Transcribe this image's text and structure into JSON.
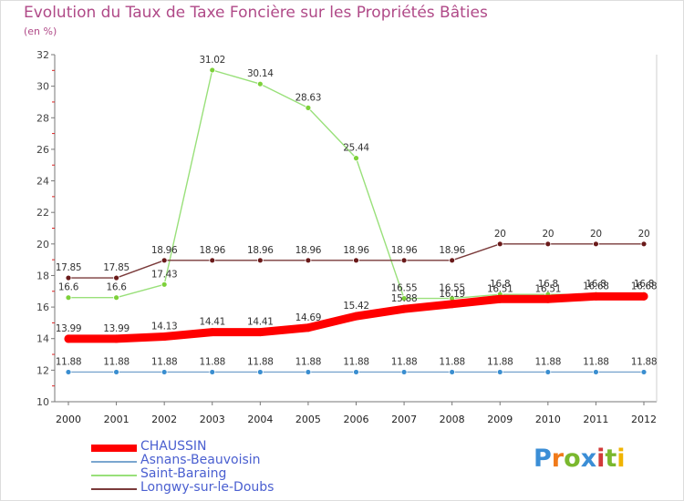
{
  "chart_data": {
    "type": "line",
    "title": "Evolution du Taux de Taxe Foncière sur les Propriétés Bâties",
    "ylabel": "(en %)",
    "xlabel": "",
    "ylim": [
      10,
      32
    ],
    "yticks": [
      10,
      12,
      14,
      16,
      18,
      20,
      22,
      24,
      26,
      28,
      30,
      32
    ],
    "categories": [
      "2000",
      "2001",
      "2002",
      "2003",
      "2004",
      "2005",
      "2006",
      "2007",
      "2008",
      "2009",
      "2010",
      "2011",
      "2012"
    ],
    "series": [
      {
        "name": "CHAUSSIN",
        "color": "#ff0000",
        "marker": "#ff0000",
        "values": [
          13.99,
          13.99,
          14.13,
          14.41,
          14.41,
          14.69,
          15.42,
          15.88,
          16.19,
          16.51,
          16.51,
          16.68,
          16.68
        ],
        "labels": [
          "13.99",
          "13.99",
          "14.13",
          "14.41",
          "14.41",
          "14.69",
          "15.42",
          "15.88",
          "16.19",
          "16.51",
          "16.51",
          "16.68",
          "16.68"
        ]
      },
      {
        "name": "Asnans-Beauvoisin",
        "color": "#7aa6cf",
        "marker": "#3a8ed0",
        "values": [
          11.88,
          11.88,
          11.88,
          11.88,
          11.88,
          11.88,
          11.88,
          11.88,
          11.88,
          11.88,
          11.88,
          11.88,
          11.88
        ],
        "labels": [
          "11.88",
          "11.88",
          "11.88",
          "11.88",
          "11.88",
          "11.88",
          "11.88",
          "11.88",
          "11.88",
          "11.88",
          "11.88",
          "11.88",
          "11.88"
        ]
      },
      {
        "name": "Saint-Baraing",
        "color": "#99e07a",
        "marker": "#7dd13a",
        "values": [
          16.6,
          16.6,
          17.43,
          31.02,
          30.14,
          28.63,
          25.44,
          16.55,
          16.55,
          16.8,
          16.8,
          16.8,
          16.8
        ],
        "labels": [
          "16.6",
          "16.6",
          "17.43",
          "31.02",
          "30.14",
          "28.63",
          "25.44",
          "16.55",
          "16.55",
          "16.8",
          "16.8",
          "16.8",
          "16.8"
        ]
      },
      {
        "name": "Longwy-sur-le-Doubs",
        "color": "#7a3a3a",
        "marker": "#6a1a1a",
        "values": [
          17.85,
          17.85,
          18.96,
          18.96,
          18.96,
          18.96,
          18.96,
          18.96,
          18.96,
          20,
          20,
          20,
          20
        ],
        "labels": [
          "17.85",
          "17.85",
          "18.96",
          "18.96",
          "18.96",
          "18.96",
          "18.96",
          "18.96",
          "18.96",
          "20",
          "20",
          "20",
          "20"
        ]
      }
    ],
    "legend": "bottom-left",
    "grid": false
  },
  "logo": {
    "text": "Proxiti",
    "letter_colors": [
      "#3b8ed6",
      "#f07a1a",
      "#7ab82e",
      "#3b8ed6",
      "#d23a3a",
      "#7ab82e",
      "#f0b400"
    ]
  }
}
